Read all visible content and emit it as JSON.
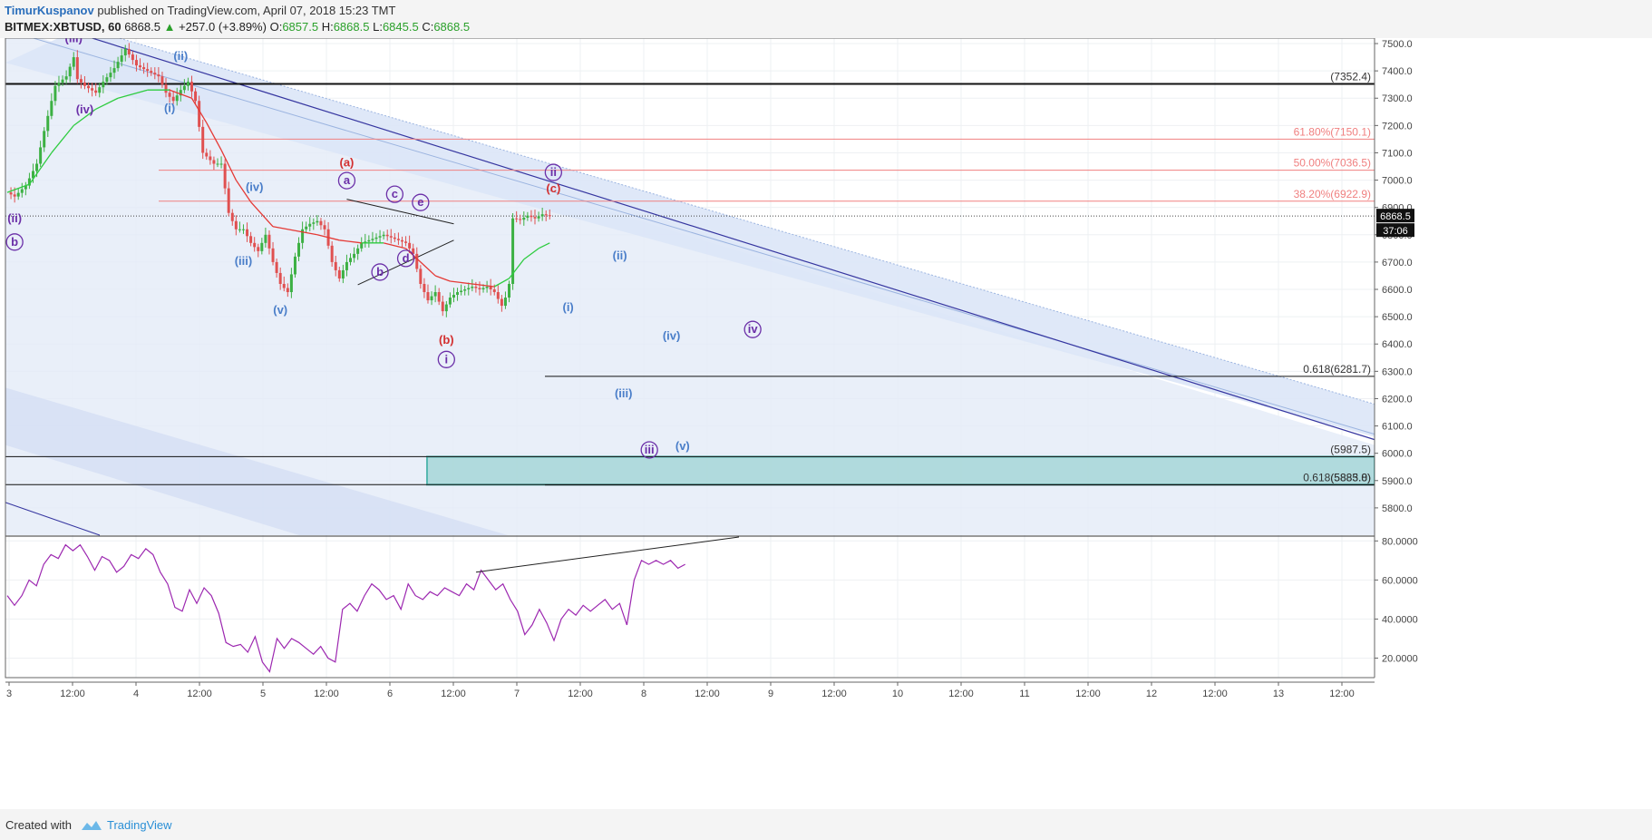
{
  "header": {
    "author": "TimurKuspanov",
    "published_text": "published on TradingView.com, April 07, 2018 15:23 TMT",
    "symbol": "BITMEX:XBTUSD, 60",
    "last": "6868.5",
    "change_arrow": "▲",
    "change": "+257.0 (+3.89%)",
    "o_label": "O:",
    "o_value": "6857.5",
    "h_label": "H:",
    "h_value": "6868.5",
    "l_label": "L:",
    "l_value": "6845.5",
    "c_label": "C:",
    "c_value": "6868.5"
  },
  "footer": {
    "created_with": "Created with",
    "brand": "TradingView"
  },
  "colors": {
    "up": "#26a69a",
    "up_candle": "#3cb043",
    "down_candle": "#e05050",
    "ema_up": "#2ecc40",
    "ema_down": "#e53935",
    "rsi": "#9c27b0",
    "fib": "#f08080",
    "channel_fill": "#dce6f7",
    "channel_line": "#3636a0",
    "box_fill": "#9dd3d4",
    "box_border": "#26a69a",
    "wave_blue": "#4a7ec9",
    "wave_purple": "#6b2fa8",
    "wave_red": "#d32f2f"
  },
  "chart_data": [
    {
      "type": "candlestick",
      "title": "BITMEX:XBTUSD, 60",
      "ylim": [
        5700,
        7520
      ],
      "y_ticks": [
        "7500.0",
        "7400.0",
        "7300.0",
        "7200.0",
        "7100.0",
        "7000.0",
        "6900.0",
        "6800.0",
        "6700.0",
        "6600.0",
        "6500.0",
        "6400.0",
        "6300.0",
        "6200.0",
        "6100.0",
        "6000.0",
        "5900.0",
        "5800.0"
      ],
      "x_ticks": [
        "3",
        "12:00",
        "4",
        "12:00",
        "5",
        "12:00",
        "6",
        "12:00",
        "7",
        "12:00",
        "8",
        "12:00",
        "9",
        "12:00",
        "10",
        "12:00",
        "11",
        "12:00",
        "12",
        "12:00",
        "13",
        "12:00"
      ],
      "last_price_label": "6868.5",
      "countdown_label": "37:06",
      "price_path": [
        [
          0,
          6955
        ],
        [
          2,
          6940
        ],
        [
          5,
          6980
        ],
        [
          8,
          7060
        ],
        [
          10,
          7180
        ],
        [
          13,
          7345
        ],
        [
          16,
          7380
        ],
        [
          18,
          7450
        ],
        [
          19,
          7370
        ],
        [
          21,
          7345
        ],
        [
          24,
          7320
        ],
        [
          26,
          7360
        ],
        [
          29,
          7410
        ],
        [
          32,
          7480
        ],
        [
          35,
          7420
        ],
        [
          38,
          7400
        ],
        [
          41,
          7380
        ],
        [
          43,
          7320
        ],
        [
          45,
          7290
        ],
        [
          47,
          7330
        ],
        [
          49,
          7360
        ],
        [
          51,
          7290
        ],
        [
          53,
          7100
        ],
        [
          56,
          7060
        ],
        [
          58,
          7060
        ],
        [
          60,
          6880
        ],
        [
          62,
          6820
        ],
        [
          64,
          6820
        ],
        [
          66,
          6770
        ],
        [
          68,
          6740
        ],
        [
          70,
          6800
        ],
        [
          72,
          6700
        ],
        [
          74,
          6620
        ],
        [
          76,
          6590
        ],
        [
          78,
          6720
        ],
        [
          80,
          6820
        ],
        [
          82,
          6840
        ],
        [
          84,
          6850
        ],
        [
          86,
          6820
        ],
        [
          88,
          6700
        ],
        [
          90,
          6640
        ],
        [
          92,
          6700
        ],
        [
          94,
          6730
        ],
        [
          96,
          6770
        ],
        [
          98,
          6780
        ],
        [
          100,
          6790
        ],
        [
          102,
          6800
        ],
        [
          104,
          6790
        ],
        [
          106,
          6780
        ],
        [
          108,
          6770
        ],
        [
          110,
          6730
        ],
        [
          112,
          6620
        ],
        [
          114,
          6560
        ],
        [
          116,
          6590
        ],
        [
          118,
          6520
        ],
        [
          120,
          6570
        ],
        [
          122,
          6590
        ],
        [
          124,
          6600
        ],
        [
          126,
          6610
        ],
        [
          128,
          6600
        ],
        [
          130,
          6610
        ],
        [
          132,
          6590
        ],
        [
          134,
          6540
        ],
        [
          135,
          6570
        ],
        [
          136,
          6620
        ],
        [
          137,
          6860
        ],
        [
          139,
          6855
        ],
        [
          141,
          6870
        ],
        [
          143,
          6860
        ],
        [
          145,
          6875
        ],
        [
          147,
          6868
        ]
      ],
      "ema_path": [
        [
          0,
          6955
        ],
        [
          6,
          6985
        ],
        [
          12,
          7100
        ],
        [
          18,
          7200
        ],
        [
          24,
          7260
        ],
        [
          30,
          7300
        ],
        [
          38,
          7330
        ],
        [
          44,
          7330
        ],
        [
          50,
          7300
        ],
        [
          54,
          7210
        ],
        [
          58,
          7110
        ],
        [
          62,
          7000
        ],
        [
          66,
          6920
        ],
        [
          72,
          6830
        ],
        [
          78,
          6815
        ],
        [
          84,
          6800
        ],
        [
          90,
          6780
        ],
        [
          96,
          6770
        ],
        [
          102,
          6770
        ],
        [
          108,
          6750
        ],
        [
          112,
          6700
        ],
        [
          116,
          6650
        ],
        [
          120,
          6630
        ],
        [
          126,
          6620
        ],
        [
          132,
          6610
        ],
        [
          136,
          6640
        ],
        [
          140,
          6710
        ],
        [
          144,
          6750
        ],
        [
          147,
          6770
        ]
      ],
      "horizontal_levels": [
        {
          "price": 7352.4,
          "label": "(7352.4)"
        },
        {
          "price": 7150.1,
          "label": "61.80%(7150.1)"
        },
        {
          "price": 7036.5,
          "label": "50.00%(7036.5)"
        },
        {
          "price": 6922.9,
          "label": "38.20%(6922.9)"
        },
        {
          "price": 6281.7,
          "label": "0.618(6281.7)"
        },
        {
          "price": 5987.5,
          "label": "(5987.5)"
        },
        {
          "price": 5883.8,
          "label": "0.618(5883.8)"
        },
        {
          "price": 5885.0,
          "label": "(5885.0)"
        }
      ],
      "wave_labels": [
        {
          "text": "(iii)",
          "t": 18,
          "price": 7505,
          "color": "purple"
        },
        {
          "text": "(ii)",
          "t": 47,
          "price": 7440,
          "color": "blue"
        },
        {
          "text": "(iv)",
          "t": 21,
          "price": 7245,
          "color": "purple"
        },
        {
          "text": "(i)",
          "t": 44,
          "price": 7250,
          "color": "blue"
        },
        {
          "text": "(ii)",
          "t": 2,
          "price": 6845,
          "color": "purple"
        },
        {
          "text": "b",
          "t": 2,
          "price": 6760,
          "color": "purple",
          "circle": true
        },
        {
          "text": "(iv)",
          "t": 67,
          "price": 6960,
          "color": "blue"
        },
        {
          "text": "(iii)",
          "t": 64,
          "price": 6690,
          "color": "blue"
        },
        {
          "text": "(v)",
          "t": 74,
          "price": 6510,
          "color": "blue"
        },
        {
          "text": "(a)",
          "t": 92,
          "price": 7050,
          "color": "red"
        },
        {
          "text": "a",
          "t": 92,
          "price": 6985,
          "color": "purple",
          "circle": true
        },
        {
          "text": "c",
          "t": 105,
          "price": 6935,
          "color": "purple",
          "circle": true
        },
        {
          "text": "e",
          "t": 112,
          "price": 6905,
          "color": "purple",
          "circle": true
        },
        {
          "text": "d",
          "t": 108,
          "price": 6700,
          "color": "purple",
          "circle": true
        },
        {
          "text": "b",
          "t": 101,
          "price": 6650,
          "color": "purple",
          "circle": true
        },
        {
          "text": "(b)",
          "t": 119,
          "price": 6400,
          "color": "red"
        },
        {
          "text": "i",
          "t": 119,
          "price": 6330,
          "color": "purple",
          "circle": true
        },
        {
          "text": "ii",
          "t": 148,
          "price": 7015,
          "color": "purple",
          "circle": true
        },
        {
          "text": "(c)",
          "t": 148,
          "price": 6955,
          "color": "red"
        },
        {
          "text": "(ii)",
          "t": 166,
          "price": 6710,
          "color": "blue"
        },
        {
          "text": "(i)",
          "t": 152,
          "price": 6520,
          "color": "blue"
        },
        {
          "text": "(iv)",
          "t": 180,
          "price": 6415,
          "color": "blue"
        },
        {
          "text": "iv",
          "t": 202,
          "price": 6440,
          "color": "purple",
          "circle": true
        },
        {
          "text": "(iii)",
          "t": 167,
          "price": 6205,
          "color": "blue"
        },
        {
          "text": "iii",
          "t": 174,
          "price": 5999,
          "color": "purple",
          "circle": true
        },
        {
          "text": "(v)",
          "t": 183,
          "price": 6013,
          "color": "blue"
        }
      ]
    },
    {
      "type": "line",
      "name": "RSI",
      "ylim": [
        10,
        82
      ],
      "y_ticks": [
        "80.0000",
        "60.0000",
        "40.0000",
        "20.0000"
      ],
      "rsi_path": [
        [
          0,
          52
        ],
        [
          2,
          47
        ],
        [
          4,
          52
        ],
        [
          6,
          60
        ],
        [
          8,
          57
        ],
        [
          10,
          68
        ],
        [
          12,
          73
        ],
        [
          14,
          71
        ],
        [
          16,
          78
        ],
        [
          18,
          75
        ],
        [
          20,
          78
        ],
        [
          22,
          72
        ],
        [
          24,
          65
        ],
        [
          26,
          72
        ],
        [
          28,
          70
        ],
        [
          30,
          64
        ],
        [
          32,
          67
        ],
        [
          34,
          73
        ],
        [
          36,
          71
        ],
        [
          38,
          76
        ],
        [
          40,
          73
        ],
        [
          42,
          64
        ],
        [
          44,
          58
        ],
        [
          46,
          46
        ],
        [
          48,
          44
        ],
        [
          50,
          55
        ],
        [
          52,
          48
        ],
        [
          54,
          56
        ],
        [
          56,
          52
        ],
        [
          58,
          43
        ],
        [
          60,
          28
        ],
        [
          62,
          26
        ],
        [
          64,
          27
        ],
        [
          66,
          23
        ],
        [
          68,
          31
        ],
        [
          70,
          18
        ],
        [
          72,
          13
        ],
        [
          74,
          30
        ],
        [
          76,
          25
        ],
        [
          78,
          30
        ],
        [
          80,
          28
        ],
        [
          82,
          25
        ],
        [
          84,
          22
        ],
        [
          86,
          26
        ],
        [
          88,
          20
        ],
        [
          90,
          18
        ],
        [
          92,
          45
        ],
        [
          94,
          48
        ],
        [
          96,
          44
        ],
        [
          98,
          52
        ],
        [
          100,
          58
        ],
        [
          102,
          55
        ],
        [
          104,
          50
        ],
        [
          106,
          52
        ],
        [
          108,
          45
        ],
        [
          110,
          58
        ],
        [
          112,
          52
        ],
        [
          114,
          50
        ],
        [
          116,
          54
        ],
        [
          118,
          52
        ],
        [
          120,
          56
        ],
        [
          122,
          54
        ],
        [
          124,
          52
        ],
        [
          126,
          58
        ],
        [
          128,
          55
        ],
        [
          130,
          65
        ],
        [
          132,
          60
        ],
        [
          134,
          55
        ],
        [
          136,
          58
        ],
        [
          138,
          50
        ],
        [
          140,
          44
        ],
        [
          142,
          32
        ],
        [
          144,
          37
        ],
        [
          146,
          45
        ],
        [
          148,
          38
        ],
        [
          150,
          29
        ],
        [
          152,
          40
        ],
        [
          154,
          45
        ],
        [
          156,
          42
        ],
        [
          158,
          47
        ],
        [
          160,
          44
        ],
        [
          162,
          47
        ],
        [
          164,
          50
        ],
        [
          166,
          45
        ],
        [
          168,
          48
        ],
        [
          170,
          37
        ],
        [
          172,
          60
        ],
        [
          174,
          70
        ],
        [
          176,
          68
        ],
        [
          178,
          70
        ],
        [
          180,
          68
        ],
        [
          182,
          70
        ],
        [
          184,
          66
        ],
        [
          186,
          68
        ]
      ]
    }
  ]
}
